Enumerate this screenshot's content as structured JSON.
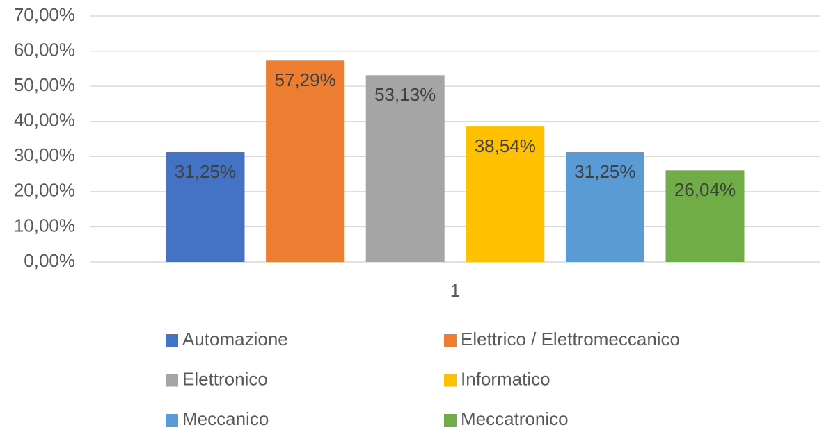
{
  "chart_data": {
    "type": "bar",
    "categories": [
      "1"
    ],
    "series": [
      {
        "name": "Automazione",
        "color": "#4472c4",
        "values": [
          31.25
        ],
        "value_labels": [
          "31,25%"
        ]
      },
      {
        "name": "Elettrico / Elettromeccanico",
        "color": "#ed7d31",
        "values": [
          57.29
        ],
        "value_labels": [
          "57,29%"
        ]
      },
      {
        "name": "Elettronico",
        "color": "#a5a5a5",
        "values": [
          53.13
        ],
        "value_labels": [
          "53,13%"
        ]
      },
      {
        "name": "Informatico",
        "color": "#ffc000",
        "values": [
          38.54
        ],
        "value_labels": [
          "38,54%"
        ]
      },
      {
        "name": "Meccanico",
        "color": "#5b9bd5",
        "values": [
          31.25
        ],
        "value_labels": [
          "31,25%"
        ]
      },
      {
        "name": "Meccatronico",
        "color": "#70ad47",
        "values": [
          26.04
        ],
        "value_labels": [
          "26,04%"
        ]
      }
    ],
    "ylim": [
      0,
      70
    ],
    "yticks": [
      {
        "value": 0,
        "label": "0,00%"
      },
      {
        "value": 10,
        "label": "10,00%"
      },
      {
        "value": 20,
        "label": "20,00%"
      },
      {
        "value": 30,
        "label": "30,00%"
      },
      {
        "value": 40,
        "label": "40,00%"
      },
      {
        "value": 50,
        "label": "50,00%"
      },
      {
        "value": 60,
        "label": "60,00%"
      },
      {
        "value": 70,
        "label": "70,00%"
      }
    ],
    "grid": true,
    "legend": "bottom"
  }
}
